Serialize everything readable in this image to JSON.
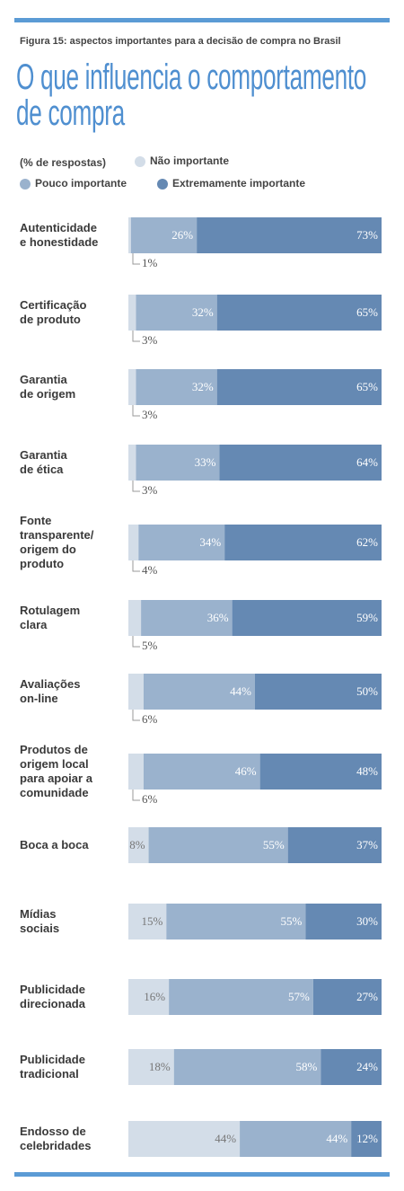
{
  "chart_data": {
    "type": "stacked-bar-horizontal",
    "figure_label": "Figura 15: aspectos importantes para a decisão de compra no Brasil",
    "title": "O que influencia o comportamento\nde compra",
    "legend_title": "(% de respostas)",
    "categories": [
      "Autenticidade\ne honestidade",
      "Certificação\nde produto",
      "Garantia\nde origem",
      "Garantia\nde ética",
      "Fonte\ntransparente/\norigem do\nproduto",
      "Rotulagem\nclara",
      "Avaliações\non-line",
      "Produtos de\norigem local\npara apoiar a\ncomunidade",
      "Boca a boca",
      "Mídias\nsociais",
      "Publicidade\ndirecionada",
      "Publicidade\ntradicional",
      "Endosso de\ncelebridades"
    ],
    "series": [
      {
        "name": "Não importante",
        "color": "#d3dde8",
        "values": [
          1,
          3,
          3,
          3,
          4,
          5,
          6,
          6,
          8,
          15,
          16,
          18,
          44
        ],
        "value_labels": [
          "1%",
          "3%",
          "3%",
          "3%",
          "4%",
          "5%",
          "6%",
          "6%",
          "8%",
          "15%",
          "16%",
          "18%",
          "44%"
        ]
      },
      {
        "name": "Pouco importante",
        "color": "#9ab2cd",
        "values": [
          26,
          32,
          32,
          33,
          34,
          36,
          44,
          46,
          55,
          55,
          57,
          58,
          44
        ],
        "value_labels": [
          "26%",
          "32%",
          "32%",
          "33%",
          "34%",
          "36%",
          "44%",
          "46%",
          "55%",
          "55%",
          "57%",
          "58%",
          "44%"
        ]
      },
      {
        "name": "Extremamente importante",
        "color": "#6589b3",
        "values": [
          73,
          65,
          65,
          64,
          62,
          59,
          50,
          48,
          37,
          30,
          27,
          24,
          12
        ],
        "value_labels": [
          "73%",
          "65%",
          "65%",
          "64%",
          "62%",
          "59%",
          "50%",
          "48%",
          "37%",
          "30%",
          "27%",
          "24%",
          "12%"
        ]
      }
    ],
    "xlim": [
      0,
      100
    ]
  }
}
